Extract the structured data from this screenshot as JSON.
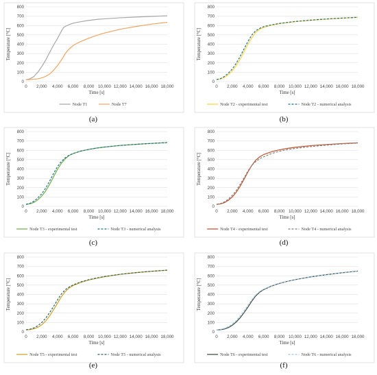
{
  "chart_data": [
    {
      "id": "a",
      "type": "line",
      "label": "(a)",
      "xlabel": "Time [s]",
      "ylabel": "Temperature [°C]",
      "xlim": [
        0,
        18000
      ],
      "ylim": [
        0,
        800
      ],
      "xticks": [
        "0",
        "2,000",
        "4,000",
        "6,000",
        "8,000",
        "10,000",
        "12,000",
        "14,000",
        "16,000",
        "18,000"
      ],
      "yticks": [
        "0",
        "100",
        "200",
        "300",
        "400",
        "500",
        "600",
        "700",
        "800"
      ],
      "grid": true,
      "legend_position": "bottom",
      "series": [
        {
          "name": "Node T1",
          "color": "#a6a6a6",
          "dash": "solid",
          "x": [
            0,
            500,
            1000,
            1500,
            2000,
            2500,
            3000,
            3500,
            4000,
            4500,
            4800,
            5000,
            5500,
            6000,
            7000,
            8000,
            9000,
            10000,
            12000,
            14000,
            16000,
            18000
          ],
          "y": [
            20,
            30,
            55,
            100,
            160,
            230,
            310,
            390,
            460,
            540,
            580,
            590,
            610,
            625,
            642,
            655,
            665,
            672,
            683,
            691,
            698,
            704
          ]
        },
        {
          "name": "Node T7",
          "color": "#f4a460",
          "dash": "solid",
          "x": [
            0,
            500,
            1000,
            1500,
            2000,
            2500,
            3000,
            3500,
            4000,
            4500,
            5000,
            5500,
            6000,
            6500,
            7000,
            8000,
            9000,
            10000,
            12000,
            14000,
            16000,
            18000
          ],
          "y": [
            20,
            22,
            25,
            30,
            40,
            55,
            80,
            120,
            170,
            230,
            300,
            350,
            385,
            410,
            430,
            465,
            495,
            520,
            560,
            590,
            615,
            635
          ]
        }
      ]
    },
    {
      "id": "b",
      "type": "line",
      "label": "(b)",
      "xlabel": "Time [s]",
      "ylabel": "Temperature [°C]",
      "xlim": [
        0,
        18000
      ],
      "ylim": [
        0,
        800
      ],
      "xticks": [
        "0",
        "2,000",
        "4,000",
        "6,000",
        "8,000",
        "10,000",
        "12,000",
        "14,000",
        "16,000",
        "18,000"
      ],
      "yticks": [
        "0",
        "100",
        "200",
        "300",
        "400",
        "500",
        "600",
        "700",
        "800"
      ],
      "grid": true,
      "legend_position": "bottom",
      "series": [
        {
          "name": "Node T2 - experimental test",
          "color": "#ffd23f",
          "dash": "solid",
          "x": [
            0,
            500,
            1000,
            1500,
            2000,
            2500,
            3000,
            3500,
            4000,
            4500,
            5000,
            5500,
            6000,
            7000,
            8000,
            9000,
            10000,
            12000,
            14000,
            16000,
            18000
          ],
          "y": [
            20,
            28,
            45,
            75,
            115,
            170,
            240,
            320,
            400,
            470,
            530,
            560,
            580,
            603,
            620,
            632,
            642,
            657,
            669,
            679,
            688
          ]
        },
        {
          "name": "Node T2 - numerical analysis",
          "color": "#1f6f8b",
          "dash": "dashed",
          "x": [
            0,
            500,
            1000,
            1500,
            2000,
            2500,
            3000,
            3500,
            4000,
            4500,
            5000,
            5500,
            6000,
            7000,
            8000,
            9000,
            10000,
            12000,
            14000,
            16000,
            18000
          ],
          "y": [
            22,
            32,
            55,
            90,
            135,
            195,
            270,
            350,
            430,
            500,
            545,
            570,
            588,
            608,
            622,
            633,
            643,
            658,
            670,
            680,
            688
          ]
        }
      ]
    },
    {
      "id": "c",
      "type": "line",
      "label": "(c)",
      "xlabel": "Time [s]",
      "ylabel": "Temperature [°C]",
      "xlim": [
        0,
        18000
      ],
      "ylim": [
        0,
        800
      ],
      "xticks": [
        "0",
        "2,000",
        "4,000",
        "6,000",
        "8,000",
        "10,000",
        "12,000",
        "14,000",
        "16,000",
        "18,000"
      ],
      "yticks": [
        "0",
        "100",
        "200",
        "300",
        "400",
        "500",
        "600",
        "700",
        "800"
      ],
      "grid": true,
      "legend_position": "bottom",
      "series": [
        {
          "name": "Node T3 - experimental test",
          "color": "#70ad47",
          "dash": "solid",
          "x": [
            0,
            500,
            1000,
            1500,
            2000,
            2500,
            3000,
            3500,
            4000,
            4500,
            5000,
            5500,
            6000,
            7000,
            8000,
            9000,
            10000,
            12000,
            14000,
            16000,
            18000
          ],
          "y": [
            20,
            27,
            42,
            70,
            110,
            165,
            235,
            315,
            395,
            460,
            510,
            545,
            565,
            592,
            610,
            624,
            635,
            652,
            664,
            674,
            683
          ]
        },
        {
          "name": "Node T3 - numerical analysis",
          "color": "#1f6f8b",
          "dash": "dashed",
          "x": [
            0,
            500,
            1000,
            1500,
            2000,
            2500,
            3000,
            3500,
            4000,
            4500,
            5000,
            5500,
            6000,
            7000,
            8000,
            9000,
            10000,
            12000,
            14000,
            16000,
            18000
          ],
          "y": [
            22,
            32,
            55,
            90,
            135,
            195,
            270,
            350,
            425,
            480,
            520,
            548,
            566,
            592,
            610,
            624,
            635,
            652,
            664,
            674,
            683
          ]
        }
      ]
    },
    {
      "id": "d",
      "type": "line",
      "label": "(d)",
      "xlabel": "Time [s]",
      "ylabel": "Temperature [°C]",
      "xlim": [
        0,
        18000
      ],
      "ylim": [
        0,
        800
      ],
      "xticks": [
        "0",
        "2,000",
        "4,000",
        "6,000",
        "8,000",
        "10,000",
        "12,000",
        "14,000",
        "16,000",
        "18,000"
      ],
      "yticks": [
        "0",
        "100",
        "200",
        "300",
        "400",
        "500",
        "600",
        "700",
        "800"
      ],
      "grid": true,
      "legend_position": "bottom",
      "series": [
        {
          "name": "Node T4 - experimental test",
          "color": "#c0502a",
          "dash": "solid",
          "x": [
            0,
            500,
            1000,
            1500,
            2000,
            2500,
            3000,
            3500,
            4000,
            4500,
            5000,
            5500,
            6000,
            7000,
            8000,
            9000,
            10000,
            12000,
            14000,
            16000,
            18000
          ],
          "y": [
            20,
            26,
            40,
            65,
            100,
            150,
            215,
            290,
            370,
            440,
            495,
            530,
            555,
            585,
            605,
            620,
            632,
            650,
            662,
            672,
            680
          ]
        },
        {
          "name": "Node T4 - numerical analysis",
          "color": "#7f7f7f",
          "dash": "dashed",
          "x": [
            0,
            500,
            1000,
            1500,
            2000,
            2500,
            3000,
            3500,
            4000,
            4500,
            5000,
            5500,
            6000,
            7000,
            8000,
            9000,
            10000,
            12000,
            14000,
            16000,
            18000
          ],
          "y": [
            22,
            30,
            48,
            78,
            118,
            170,
            235,
            305,
            380,
            440,
            480,
            510,
            530,
            565,
            590,
            607,
            620,
            640,
            655,
            668,
            678
          ]
        }
      ]
    },
    {
      "id": "e",
      "type": "line",
      "label": "(e)",
      "xlabel": "Time [s]",
      "ylabel": "Temperature [°C]",
      "xlim": [
        0,
        18000
      ],
      "ylim": [
        0,
        800
      ],
      "xticks": [
        "0",
        "2,000",
        "4,000",
        "6,000",
        "8,000",
        "10,000",
        "12,000",
        "14,000",
        "16,000",
        "18,000"
      ],
      "yticks": [
        "0",
        "100",
        "200",
        "300",
        "400",
        "500",
        "600",
        "700",
        "800"
      ],
      "grid": true,
      "legend_position": "bottom",
      "series": [
        {
          "name": "Node T5 - experimental test",
          "color": "#c9a227",
          "dash": "solid",
          "x": [
            0,
            500,
            1000,
            1500,
            2000,
            2500,
            3000,
            3500,
            4000,
            4500,
            5000,
            5500,
            6000,
            7000,
            8000,
            9000,
            10000,
            12000,
            14000,
            16000,
            18000
          ],
          "y": [
            20,
            24,
            32,
            48,
            75,
            115,
            170,
            235,
            305,
            375,
            430,
            470,
            495,
            530,
            555,
            573,
            590,
            615,
            633,
            648,
            660
          ]
        },
        {
          "name": "Node T5 - numerical analysis",
          "color": "#2f5f5f",
          "dash": "dashed",
          "x": [
            0,
            500,
            1000,
            1500,
            2000,
            2500,
            3000,
            3500,
            4000,
            4500,
            5000,
            5500,
            6000,
            7000,
            8000,
            9000,
            10000,
            12000,
            14000,
            16000,
            18000
          ],
          "y": [
            22,
            28,
            42,
            65,
            100,
            145,
            205,
            270,
            340,
            405,
            450,
            480,
            502,
            535,
            558,
            576,
            592,
            616,
            634,
            648,
            660
          ]
        }
      ]
    },
    {
      "id": "f",
      "type": "line",
      "label": "(f)",
      "xlabel": "Time [s]",
      "ylabel": "Temperature [°C]",
      "xlim": [
        0,
        18000
      ],
      "ylim": [
        0,
        800
      ],
      "xticks": [
        "0",
        "2,000",
        "4,000",
        "6,000",
        "8,000",
        "10,000",
        "12,000",
        "14,000",
        "16,000",
        "18,000"
      ],
      "yticks": [
        "0",
        "100",
        "200",
        "300",
        "400",
        "500",
        "600",
        "700",
        "800"
      ],
      "grid": true,
      "legend_position": "bottom",
      "series": [
        {
          "name": "Node T6 - experimental test",
          "color": "#3a4a3a",
          "dash": "solid",
          "x": [
            0,
            500,
            1000,
            1500,
            2000,
            2500,
            3000,
            3500,
            4000,
            4500,
            5000,
            5500,
            6000,
            7000,
            8000,
            9000,
            10000,
            12000,
            14000,
            16000,
            18000
          ],
          "y": [
            20,
            23,
            30,
            45,
            70,
            105,
            150,
            205,
            265,
            330,
            385,
            425,
            452,
            490,
            518,
            540,
            558,
            588,
            612,
            632,
            650
          ]
        },
        {
          "name": "Node T6 - numerical analysis",
          "color": "#9dc3e6",
          "dash": "dashed",
          "x": [
            0,
            500,
            1000,
            1500,
            2000,
            2500,
            3000,
            3500,
            4000,
            4500,
            5000,
            5500,
            6000,
            7000,
            8000,
            9000,
            10000,
            12000,
            14000,
            16000,
            18000
          ],
          "y": [
            22,
            26,
            36,
            55,
            82,
            120,
            168,
            225,
            285,
            345,
            395,
            432,
            456,
            492,
            520,
            541,
            559,
            589,
            612,
            632,
            650
          ]
        }
      ]
    }
  ]
}
